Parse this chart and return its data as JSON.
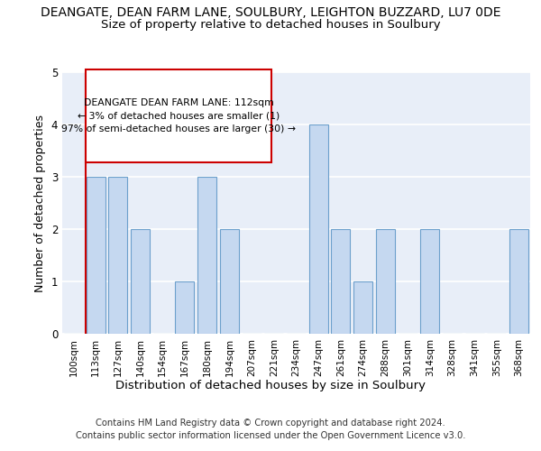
{
  "title1": "DEANGATE, DEAN FARM LANE, SOULBURY, LEIGHTON BUZZARD, LU7 0DE",
  "title2": "Size of property relative to detached houses in Soulbury",
  "xlabel": "Distribution of detached houses by size in Soulbury",
  "ylabel": "Number of detached properties",
  "categories": [
    "100sqm",
    "113sqm",
    "127sqm",
    "140sqm",
    "154sqm",
    "167sqm",
    "180sqm",
    "194sqm",
    "207sqm",
    "221sqm",
    "234sqm",
    "247sqm",
    "261sqm",
    "274sqm",
    "288sqm",
    "301sqm",
    "314sqm",
    "328sqm",
    "341sqm",
    "355sqm",
    "368sqm"
  ],
  "values": [
    0,
    3,
    3,
    2,
    0,
    1,
    3,
    2,
    0,
    0,
    0,
    4,
    2,
    1,
    2,
    0,
    2,
    0,
    0,
    0,
    2
  ],
  "bar_color": "#c5d8f0",
  "bar_edge_color": "#6ca0cc",
  "vline_color": "#cc0000",
  "annotation_box_text": "DEANGATE DEAN FARM LANE: 112sqm\n← 3% of detached houses are smaller (1)\n97% of semi-detached houses are larger (30) →",
  "annotation_box_color": "#cc0000",
  "footer_text": "Contains HM Land Registry data © Crown copyright and database right 2024.\nContains public sector information licensed under the Open Government Licence v3.0.",
  "ylim": [
    0,
    5
  ],
  "yticks": [
    0,
    1,
    2,
    3,
    4,
    5
  ],
  "background_color": "#e8eef8",
  "grid_color": "#ffffff",
  "title1_fontsize": 10,
  "title2_fontsize": 9.5,
  "axis_label_fontsize": 9,
  "tick_fontsize": 7.5,
  "footer_fontsize": 7.2
}
